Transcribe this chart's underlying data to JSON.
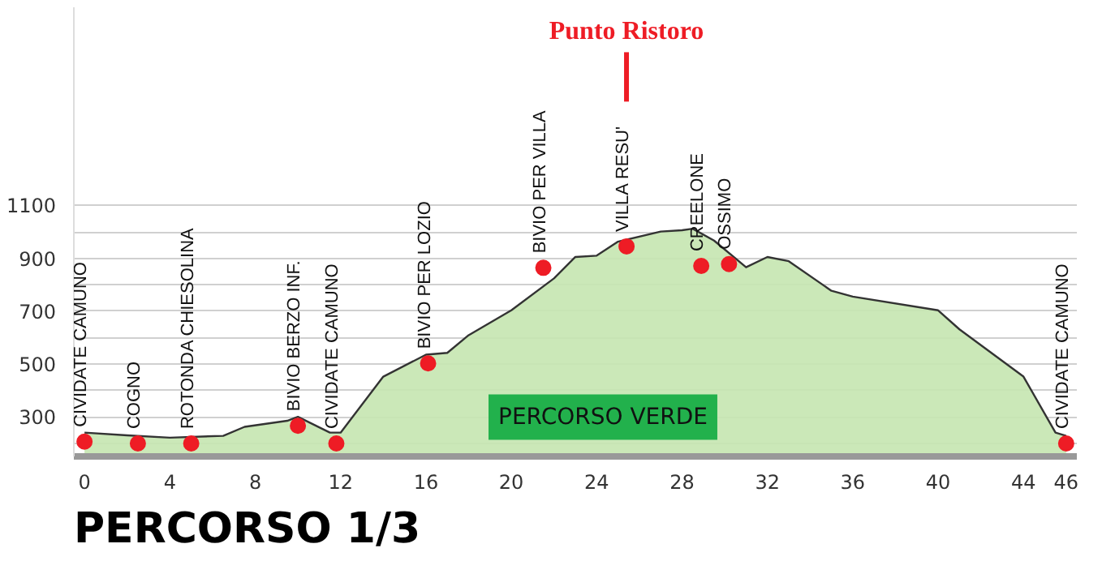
{
  "chart_data": {
    "type": "area",
    "title": "PERCORSO 1/3",
    "x": [
      0,
      2,
      4,
      6.5,
      7.5,
      9.5,
      10,
      11.5,
      12,
      14,
      16,
      17,
      18,
      20,
      22,
      23,
      24,
      25,
      27,
      28,
      28.5,
      29.5,
      31,
      32,
      33,
      35,
      36,
      40,
      41,
      44,
      45.5,
      46
    ],
    "series": [
      {
        "color": "#c5e6b0",
        "values": [
          240,
          230,
          221,
          228,
          262,
          285,
          300,
          240,
          240,
          452,
          535,
          542,
          609,
          703,
          824,
          905,
          910,
          963,
          1001,
          1006,
          1012,
          967,
          866,
          905,
          889,
          777,
          755,
          703,
          631,
          452,
          240,
          228
        ]
      },
      {
        "type": "scatter",
        "marker": "circle",
        "color": "#ee1c25",
        "x": [
          0,
          2.5,
          5,
          10,
          11.8,
          16.1,
          21.5,
          25.4,
          28.9,
          30.2,
          46
        ],
        "values": [
          206,
          199,
          199,
          266,
          199,
          502,
          864,
          945,
          871,
          878,
          199
        ],
        "value_labels": [
          "CIVIDATE CAMUNO",
          "COGNO",
          "ROTONDA CHIESOLINA",
          "BIVIO BERZO INF.",
          "CIVIDATE CAMUNO",
          "BIVIO PER LOZIO",
          "BIVIO PER VILLA",
          "VILLA RESU'",
          "CREELONE",
          "OSSIMO",
          "CIVIDATE CAMUNO"
        ]
      }
    ],
    "annotations": [
      "Punto Ristoro",
      "PERCORSO VERDE"
    ],
    "xlim": [
      -0.5,
      46.5
    ],
    "ylim": [
      150,
      1850
    ],
    "xticks": [
      0,
      4,
      8,
      12,
      16,
      20,
      24,
      28,
      32,
      36,
      40,
      44,
      46
    ],
    "yticks": [
      {
        "value": 200,
        "label": null
      },
      300,
      {
        "value": 400,
        "label": null
      },
      500,
      {
        "value": 600,
        "label": null
      },
      700,
      {
        "value": 800,
        "label": null
      },
      900,
      {
        "value": 1000,
        "label": null
      },
      1100
    ],
    "grid": "y"
  }
}
